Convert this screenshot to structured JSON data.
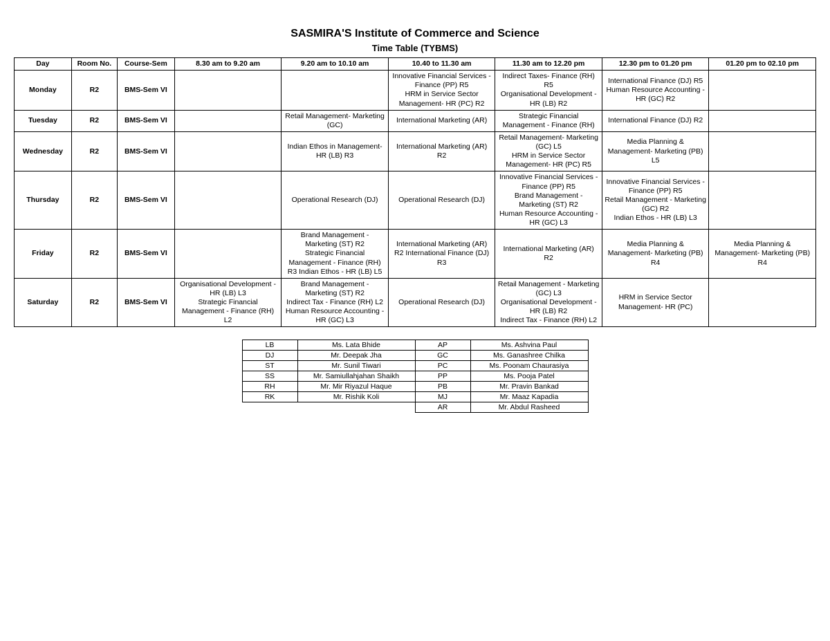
{
  "header": {
    "title": "SASMIRA'S Institute of Commerce and Science",
    "subtitle": "Time Table (TYBMS)"
  },
  "timetable": {
    "columns": [
      "Day",
      "Room No.",
      "Course-Sem",
      "8.30 am to 9.20 am",
      "9.20 am to 10.10 am",
      "10.40 to 11.30 am",
      "11.30 am to 12.20 pm",
      "12.30 pm to 01.20 pm",
      "01.20 pm to 02.10 pm"
    ],
    "rows": [
      {
        "day": "Monday",
        "room": "R2",
        "course": "BMS-Sem VI",
        "slots": [
          "",
          "",
          "Innovative Financial Services - Finance (PP) R5\nHRM in Service Sector Management- HR (PC) R2",
          "Indirect Taxes- Finance (RH) R5\nOrganisational Development - HR (LB) R2",
          "International Finance (DJ) R5\nHuman Resource Accounting - HR (GC) R2",
          ""
        ]
      },
      {
        "day": "Tuesday",
        "room": "R2",
        "course": "BMS-Sem VI",
        "slots": [
          "",
          "Retail Management- Marketing (GC)",
          "International Marketing (AR)",
          "Strategic Financial Management - Finance (RH)",
          "International Finance (DJ) R2",
          ""
        ]
      },
      {
        "day": "Wednesday",
        "room": "R2",
        "course": "BMS-Sem VI",
        "slots": [
          "",
          "Indian Ethos in Management- HR (LB) R3",
          "International Marketing (AR) R2",
          "Retail Management- Marketing (GC) L5\nHRM in Service Sector Management- HR (PC) R5",
          "Media Planning & Management- Marketing (PB) L5",
          ""
        ]
      },
      {
        "day": "Thursday",
        "room": "R2",
        "course": "BMS-Sem VI",
        "slots": [
          "",
          "Operational Research (DJ)",
          "Operational Research (DJ)",
          "Innovative Financial Services - Finance (PP) R5\nBrand Management - Marketing (ST) R2\nHuman Resource Accounting - HR (GC) L3",
          "Innovative Financial Services - Finance (PP) R5\nRetail Management - Marketing (GC) R2\nIndian Ethos - HR (LB)  L3",
          ""
        ]
      },
      {
        "day": "Friday",
        "room": "R2",
        "course": "BMS-Sem VI",
        "slots": [
          "",
          "Brand Management - Marketing (ST) R2\nStrategic Financial Management - Finance (RH) R3                          Indian Ethos - HR (LB) L5",
          "International Marketing (AR) R2 International Finance (DJ) R3",
          "International Marketing (AR) R2",
          "Media Planning & Management- Marketing (PB) R4",
          "Media Planning & Management- Marketing (PB) R4"
        ]
      },
      {
        "day": "Saturday",
        "room": "R2",
        "course": "BMS-Sem VI",
        "slots": [
          "Organisational Development - HR (LB) L3\nStrategic Financial Management - Finance (RH) L2",
          "Brand Management - Marketing (ST) R2\nIndirect Tax - Finance (RH) L2      Human Resource Accounting - HR (GC) L3",
          "Operational Research (DJ)",
          "Retail Management - Marketing (GC) L3\nOrganisational Development - HR (LB) R2\nIndirect Tax - Finance (RH) L2",
          "HRM in Service Sector Management- HR (PC)",
          ""
        ]
      }
    ]
  },
  "legend": {
    "rows": [
      [
        "LB",
        "Ms. Lata Bhide",
        "AP",
        "Ms. Ashvina Paul"
      ],
      [
        "DJ",
        "Mr. Deepak Jha",
        "GC",
        "Ms. Ganashree Chilka"
      ],
      [
        "ST",
        "Mr. Sunil Tiwari",
        "PC",
        "Ms. Poonam Chaurasiya"
      ],
      [
        "SS",
        "Mr. Samiullahjahan Shaikh",
        "PP",
        "Ms. Pooja Patel"
      ],
      [
        "RH",
        "Mr. Mir Riyazul Haque",
        "PB",
        "Mr. Pravin Bankad"
      ],
      [
        "RK",
        "Mr. Rishik Koli",
        "MJ",
        "Mr. Maaz Kapadia"
      ],
      [
        "",
        "",
        "AR",
        "Mr. Abdul Rasheed"
      ]
    ]
  }
}
